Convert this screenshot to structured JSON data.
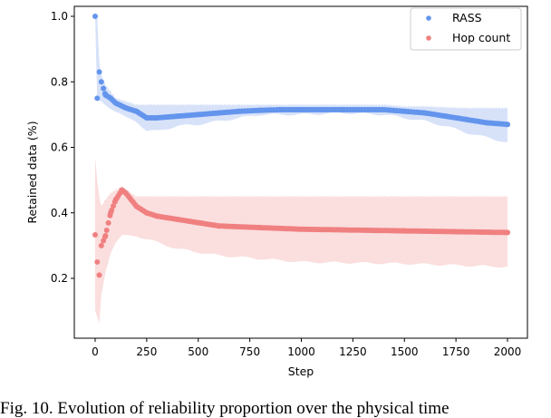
{
  "chart_data": {
    "type": "scatter",
    "title": "",
    "xlabel": "Step",
    "ylabel": "Retained data (%)",
    "xlim": [
      -100,
      2100
    ],
    "ylim": [
      0.015,
      1.03
    ],
    "xticks": [
      0,
      250,
      500,
      750,
      1000,
      1250,
      1500,
      1750,
      2000
    ],
    "yticks": [
      0.2,
      0.4,
      0.6,
      0.8,
      1.0
    ],
    "xtick_labels": [
      "0",
      "250",
      "500",
      "750",
      "1000",
      "1250",
      "1500",
      "1750",
      "2000"
    ],
    "ytick_labels": [
      "0.2",
      "0.4",
      "0.6",
      "0.8",
      "1.0"
    ],
    "legend_placement": "top-right",
    "grid": false,
    "series": [
      {
        "name": "RASS",
        "color": "#6495ed",
        "band_color": "#c9d8f7",
        "x": [
          0,
          10,
          20,
          30,
          50,
          75,
          100,
          150,
          200,
          250,
          300,
          400,
          500,
          600,
          700,
          800,
          900,
          1000,
          1200,
          1400,
          1500,
          1600,
          1700,
          1800,
          1900,
          2000
        ],
        "mean": [
          1.0,
          0.75,
          0.83,
          0.8,
          0.76,
          0.75,
          0.735,
          0.72,
          0.71,
          0.69,
          0.69,
          0.695,
          0.7,
          0.705,
          0.71,
          0.713,
          0.715,
          0.715,
          0.715,
          0.715,
          0.71,
          0.705,
          0.695,
          0.685,
          0.675,
          0.67
        ],
        "lower": [
          1.0,
          0.74,
          0.74,
          0.74,
          0.73,
          0.72,
          0.71,
          0.69,
          0.68,
          0.65,
          0.65,
          0.665,
          0.67,
          0.68,
          0.69,
          0.7,
          0.7,
          0.7,
          0.705,
          0.7,
          0.69,
          0.68,
          0.665,
          0.645,
          0.63,
          0.615
        ],
        "upper": [
          1.0,
          1.0,
          0.86,
          0.82,
          0.79,
          0.77,
          0.75,
          0.74,
          0.73,
          0.73,
          0.73,
          0.73,
          0.73,
          0.73,
          0.73,
          0.73,
          0.73,
          0.73,
          0.73,
          0.73,
          0.725,
          0.725,
          0.722,
          0.72,
          0.72,
          0.72
        ]
      },
      {
        "name": "Hop count",
        "color": "#f08080",
        "band_color": "#f9d3d3",
        "x": [
          0,
          10,
          20,
          30,
          50,
          75,
          100,
          130,
          150,
          200,
          250,
          300,
          400,
          500,
          600,
          800,
          1000,
          1500,
          2000
        ],
        "mean": [
          0.333,
          0.25,
          0.21,
          0.3,
          0.33,
          0.4,
          0.44,
          0.47,
          0.46,
          0.42,
          0.4,
          0.39,
          0.38,
          0.37,
          0.36,
          0.355,
          0.35,
          0.345,
          0.34
        ],
        "lower": [
          0.1,
          0.08,
          0.06,
          0.15,
          0.22,
          0.28,
          0.31,
          0.33,
          0.33,
          0.33,
          0.32,
          0.31,
          0.29,
          0.28,
          0.27,
          0.26,
          0.25,
          0.245,
          0.235
        ],
        "upper": [
          0.57,
          0.5,
          0.45,
          0.42,
          0.44,
          0.46,
          0.47,
          0.48,
          0.47,
          0.45,
          0.45,
          0.45,
          0.45,
          0.45,
          0.45,
          0.45,
          0.45,
          0.45,
          0.45
        ]
      }
    ]
  },
  "caption": "Fig. 10. Evolution of reliability proportion over the physical time"
}
